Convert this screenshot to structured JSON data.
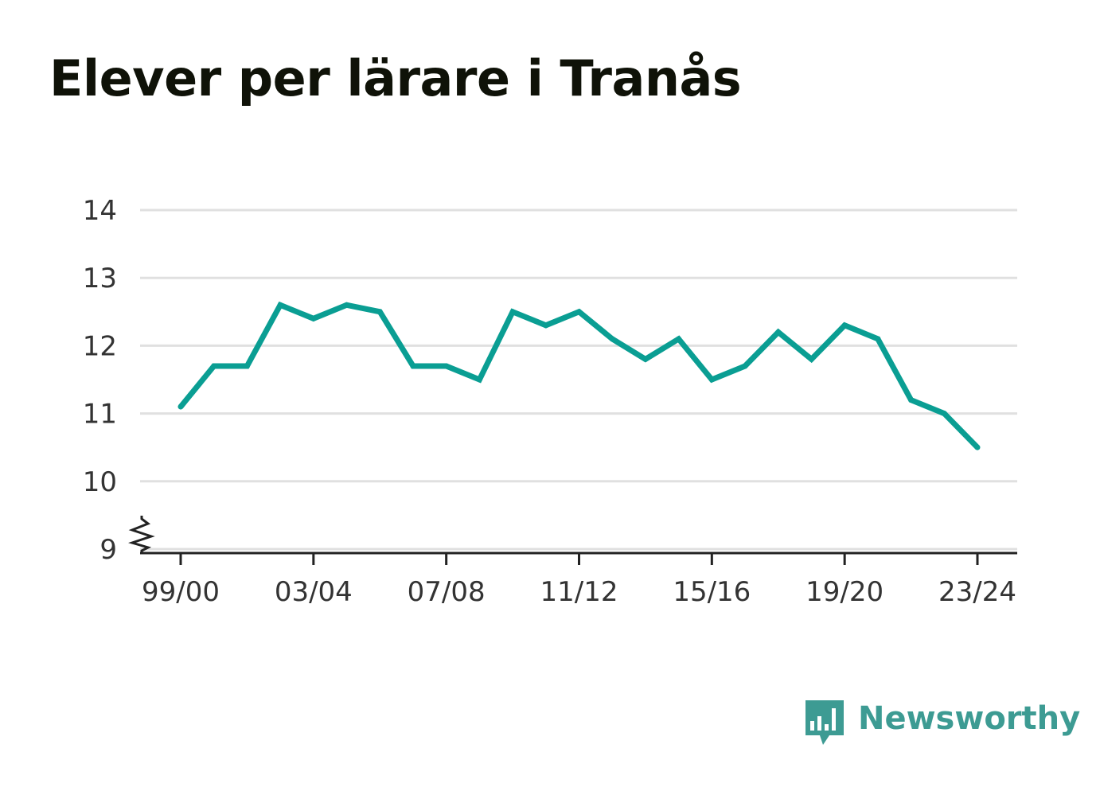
{
  "title": "Elever per lärare i Tranås",
  "colors": {
    "line": "#0a9e93",
    "grid": "#e0e0e0",
    "axis": "#222222",
    "title": "#0f1208",
    "logo": "#3d9b93"
  },
  "logo": {
    "icon": "newsworthy-chart-icon",
    "text": "Newsworthy"
  },
  "chart_data": {
    "type": "line",
    "title": "Elever per lärare i Tranås",
    "xlabel": "",
    "ylabel": "",
    "x": [
      "99/00",
      "00/01",
      "01/02",
      "02/03",
      "03/04",
      "04/05",
      "05/06",
      "06/07",
      "07/08",
      "08/09",
      "09/10",
      "10/11",
      "11/12",
      "12/13",
      "13/14",
      "14/15",
      "15/16",
      "16/17",
      "17/18",
      "18/19",
      "19/20",
      "20/21",
      "21/22",
      "22/23",
      "23/24"
    ],
    "series": [
      {
        "values": [
          11.1,
          11.7,
          11.7,
          12.6,
          12.4,
          12.6,
          12.5,
          11.7,
          11.7,
          11.5,
          12.5,
          12.3,
          12.5,
          12.1,
          11.8,
          12.1,
          11.5,
          11.7,
          12.2,
          11.8,
          12.3,
          12.1,
          11.2,
          11.0,
          10.5
        ]
      }
    ],
    "x_tick_labels": [
      "99/00",
      "03/04",
      "07/08",
      "11/12",
      "15/16",
      "19/20",
      "23/24"
    ],
    "y_ticks": [
      9,
      10,
      11,
      12,
      13,
      14
    ],
    "ylim": [
      9,
      14
    ],
    "y_axis_break": true,
    "grid": true,
    "legend": "none"
  }
}
